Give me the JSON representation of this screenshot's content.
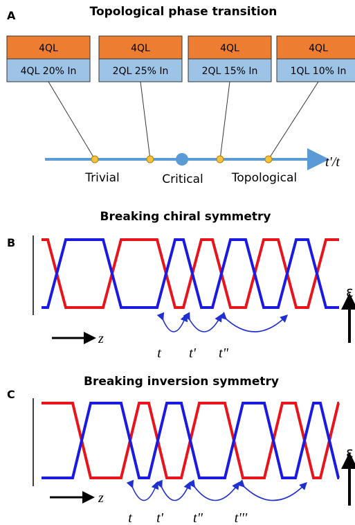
{
  "panel_a": {
    "label": "A",
    "title": "Topological phase transition",
    "boxes": [
      {
        "top": "4QL",
        "bottom": "4QL 20% In"
      },
      {
        "top": "4QL",
        "bottom": "2QL 25% In"
      },
      {
        "top": "4QL",
        "bottom": "2QL 15% In"
      },
      {
        "top": "4QL",
        "bottom": "1QL 10% In"
      }
    ],
    "axis_label": "t'/t",
    "phases": [
      "Trivial",
      "Critical",
      "Topological"
    ]
  },
  "panel_b": {
    "label": "B",
    "title": "Breaking chiral symmetry",
    "z_label": "z",
    "energy_label": "ε",
    "hoppings": [
      "t",
      "t'",
      "t\""
    ]
  },
  "panel_c": {
    "label": "C",
    "title": "Breaking inversion symmetry",
    "z_label": "z",
    "energy_label": "ε",
    "hoppings": [
      "t",
      "t'",
      "t\"",
      "t'''"
    ]
  }
}
